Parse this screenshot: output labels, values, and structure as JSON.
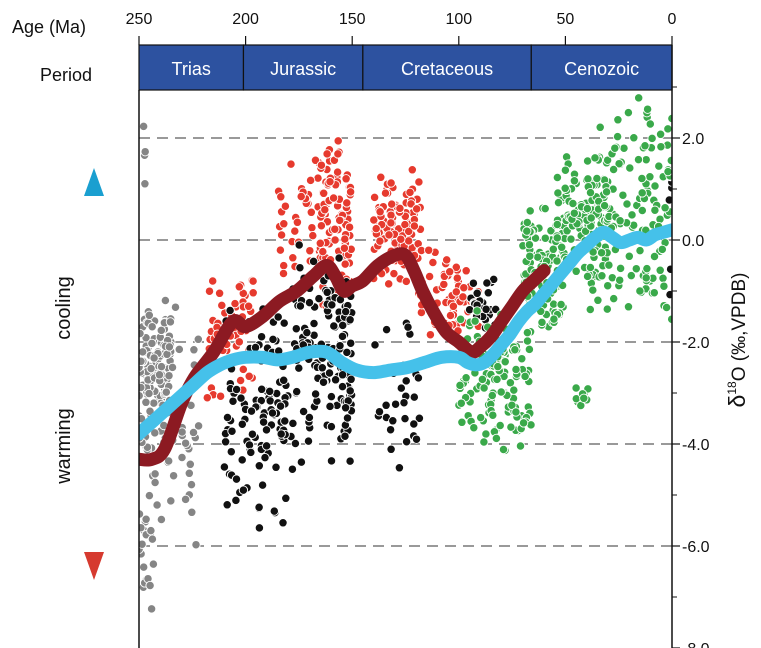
{
  "chart_data": {
    "type": "scatter",
    "x_axis": {
      "label": "Age (Ma)",
      "ticks": [
        250,
        200,
        150,
        100,
        50,
        0
      ],
      "range": [
        250,
        0
      ],
      "position": "top",
      "reversed": true
    },
    "y_axis": {
      "label_prefix": "δ",
      "label_sup": "18",
      "label_suffix": "O (‰,VPDB)",
      "ticks": [
        "2.0",
        "0.0",
        "-2.0",
        "-4.0",
        "-6.0",
        "-8.0"
      ],
      "range": [
        -8.0,
        3.0
      ],
      "position": "right"
    },
    "periods_label": "Period",
    "periods": [
      {
        "name": "Trias",
        "start": 250,
        "end": 201
      },
      {
        "name": "Jurassic",
        "start": 201,
        "end": 145
      },
      {
        "name": "Cretaceous",
        "start": 145,
        "end": 66
      },
      {
        "name": "Cenozoic",
        "start": 66,
        "end": 0
      }
    ],
    "grid": "dashed horizontal lines at 2, 0, -2, -4, -6",
    "side_labels": {
      "cooling": "cooling",
      "warming": "warming"
    },
    "colors": {
      "band": "#2d52a0",
      "gray": "#858585",
      "red": "#e63a2e",
      "black": "#111111",
      "green": "#3aa94a",
      "dark_red_curve": "#8c1a22",
      "cyan_curve": "#45c1ea",
      "arrow_up": "#1a9fd0",
      "arrow_down": "#d63a2f"
    },
    "series": [
      {
        "color_key": "gray",
        "age_range": [
          250,
          220
        ],
        "approx_d18O_range": [
          -7.8,
          2.6
        ],
        "clusters": [
          {
            "x": [
              250,
              235
            ],
            "y": [
              -4.5,
              -0.8
            ],
            "n": 140
          },
          {
            "x": [
              250,
              243
            ],
            "y": [
              -7.8,
              -4.5
            ],
            "n": 22
          },
          {
            "x": [
              243,
              222
            ],
            "y": [
              -6.4,
              -1.2
            ],
            "n": 45
          },
          {
            "x": [
              248,
              247
            ],
            "y": [
              0.8,
              2.6
            ],
            "n": 4
          }
        ]
      },
      {
        "color_key": "red",
        "age_range": [
          218,
          75
        ],
        "approx_d18O_range": [
          -4.8,
          2.4
        ],
        "clusters": [
          {
            "x": [
              218,
              195
            ],
            "y": [
              -3.2,
              -0.4
            ],
            "n": 70
          },
          {
            "x": [
              185,
              160
            ],
            "y": [
              -1.0,
              1.8
            ],
            "n": 45
          },
          {
            "x": [
              165,
              150
            ],
            "y": [
              -1.5,
              2.3
            ],
            "n": 90
          },
          {
            "x": [
              140,
              118
            ],
            "y": [
              -1.0,
              1.5
            ],
            "n": 110
          },
          {
            "x": [
              120,
              100
            ],
            "y": [
              -2.0,
              0.0
            ],
            "n": 40
          },
          {
            "x": [
              105,
              90
            ],
            "y": [
              -2.0,
              -0.4
            ],
            "n": 25
          }
        ]
      },
      {
        "color_key": "black",
        "age_range": [
          210,
          0
        ],
        "approx_d18O_range": [
          -6.3,
          1.8
        ],
        "clusters": [
          {
            "x": [
              210,
              178
            ],
            "y": [
              -5.8,
              -1.0
            ],
            "n": 110
          },
          {
            "x": [
              178,
              155
            ],
            "y": [
              -4.5,
              0.0
            ],
            "n": 110
          },
          {
            "x": [
              155,
              150
            ],
            "y": [
              -4.8,
              -0.5
            ],
            "n": 40
          },
          {
            "x": [
              140,
              118
            ],
            "y": [
              -4.8,
              -1.5
            ],
            "n": 30
          },
          {
            "x": [
              95,
              82
            ],
            "y": [
              -1.9,
              -0.7
            ],
            "n": 25
          },
          {
            "x": [
              2,
              0
            ],
            "y": [
              -1.5,
              1.8
            ],
            "n": 6
          }
        ]
      },
      {
        "color_key": "green",
        "age_range": [
          100,
          0
        ],
        "approx_d18O_range": [
          -4.4,
          3.0
        ],
        "clusters": [
          {
            "x": [
              100,
              66
            ],
            "y": [
              -4.3,
              -1.2
            ],
            "n": 140
          },
          {
            "x": [
              70,
              50
            ],
            "y": [
              -2.0,
              0.8
            ],
            "n": 110
          },
          {
            "x": [
              55,
              30
            ],
            "y": [
              -1.0,
              1.8
            ],
            "n": 110
          },
          {
            "x": [
              40,
              0
            ],
            "y": [
              -1.8,
              3.0
            ],
            "n": 160
          },
          {
            "x": [
              45,
              38
            ],
            "y": [
              -3.3,
              -2.7
            ],
            "n": 10
          }
        ]
      }
    ],
    "trend_curves": [
      {
        "color_key": "dark_red_curve",
        "x": [
          250,
          244,
          238,
          230,
          224,
          215,
          206,
          200,
          192,
          184,
          176,
          168,
          162,
          158,
          154,
          150,
          145,
          138,
          130,
          125,
          121,
          117,
          112,
          106,
          100,
          94,
          90,
          85,
          80,
          75,
          70,
          65,
          60
        ],
        "y": [
          -4.3,
          -4.3,
          -4.1,
          -3.2,
          -2.7,
          -2.2,
          -1.6,
          -1.7,
          -1.5,
          -1.2,
          -1.0,
          -0.7,
          -0.5,
          -0.7,
          -1.0,
          -0.9,
          -0.8,
          -0.5,
          -0.3,
          -0.3,
          -0.6,
          -1.0,
          -1.4,
          -1.8,
          -2.0,
          -2.2,
          -2.1,
          -1.9,
          -1.6,
          -1.3,
          -1.0,
          -0.8,
          -0.6
        ]
      },
      {
        "color_key": "cyan_curve",
        "x": [
          250,
          242,
          234,
          226,
          218,
          212,
          206,
          200,
          192,
          185,
          178,
          170,
          162,
          155,
          148,
          140,
          132,
          124,
          116,
          108,
          100,
          96,
          92,
          88,
          84,
          80,
          76,
          72,
          68,
          64,
          60,
          56,
          52,
          48,
          44,
          40,
          36,
          32,
          28,
          24,
          20,
          16,
          12,
          8,
          4,
          0
        ],
        "y": [
          -3.8,
          -3.5,
          -3.2,
          -2.9,
          -2.6,
          -2.45,
          -2.35,
          -2.3,
          -2.3,
          -2.35,
          -2.3,
          -2.2,
          -2.2,
          -2.4,
          -2.55,
          -2.6,
          -2.55,
          -2.5,
          -2.4,
          -2.3,
          -2.3,
          -2.4,
          -2.45,
          -2.4,
          -2.25,
          -2.05,
          -1.85,
          -1.6,
          -1.4,
          -1.25,
          -1.05,
          -0.85,
          -0.65,
          -0.45,
          -0.25,
          -0.1,
          0.05,
          0.15,
          0.05,
          -0.05,
          0.0,
          0.05,
          0.0,
          0.1,
          0.15,
          0.2
        ]
      }
    ]
  }
}
